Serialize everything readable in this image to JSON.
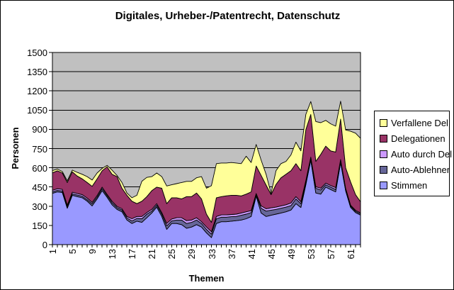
{
  "chart_data": {
    "type": "area",
    "stacked": true,
    "title": "Digitales, Urheber-/Patentrecht, Datenschutz",
    "xlabel": "Themen",
    "ylabel": "Personen",
    "ylim": [
      0,
      1500
    ],
    "yticks": [
      0,
      150,
      300,
      450,
      600,
      750,
      900,
      1050,
      1200,
      1350,
      1500
    ],
    "xtick_labels": [
      1,
      5,
      9,
      13,
      17,
      21,
      25,
      29,
      33,
      37,
      41,
      45,
      49,
      53,
      57,
      61
    ],
    "x": [
      1,
      2,
      3,
      4,
      5,
      6,
      7,
      8,
      9,
      10,
      11,
      12,
      13,
      14,
      15,
      16,
      17,
      18,
      19,
      20,
      21,
      22,
      23,
      24,
      25,
      26,
      27,
      28,
      29,
      30,
      31,
      32,
      33,
      34,
      35,
      36,
      37,
      38,
      39,
      40,
      41,
      42,
      43,
      44,
      45,
      46,
      47,
      48,
      49,
      50,
      51,
      52,
      53,
      54,
      55,
      56,
      57,
      58,
      59,
      60,
      61,
      62,
      63
    ],
    "grid": true,
    "plot_bg": "#C0C0C0",
    "legend_position": "right",
    "series": [
      {
        "name": "Stimmen",
        "color": "#9999FF",
        "values": [
          400,
          412,
          407,
          284,
          385,
          375,
          366,
          339,
          302,
          357,
          421,
          370,
          311,
          275,
          256,
          192,
          165,
          183,
          174,
          210,
          247,
          293,
          220,
          119,
          165,
          165,
          156,
          128,
          137,
          156,
          137,
          92,
          55,
          165,
          179,
          179,
          183,
          187,
          192,
          202,
          220,
          379,
          247,
          220,
          229,
          238,
          247,
          256,
          270,
          320,
          290,
          467,
          659,
          403,
          394,
          449,
          430,
          412,
          640,
          420,
          290,
          250,
          230
        ]
      },
      {
        "name": "Auto-Ablehner",
        "color": "#666699",
        "values": [
          12,
          12,
          12,
          12,
          12,
          12,
          12,
          12,
          16,
          14,
          16,
          12,
          16,
          14,
          14,
          16,
          20,
          22,
          28,
          28,
          15,
          15,
          18,
          28,
          20,
          27,
          36,
          37,
          37,
          36,
          28,
          27,
          27,
          37,
          35,
          35,
          35,
          33,
          37,
          36,
          30,
          11,
          37,
          42,
          40,
          37,
          37,
          37,
          35,
          37,
          30,
          18,
          13,
          37,
          33,
          18,
          19,
          18,
          15,
          12,
          10,
          10,
          10
        ]
      },
      {
        "name": "Auto durch Del",
        "color": "#CC99FF",
        "values": [
          12,
          12,
          12,
          12,
          12,
          12,
          12,
          12,
          12,
          12,
          12,
          10,
          12,
          10,
          10,
          12,
          17,
          15,
          18,
          12,
          13,
          12,
          12,
          18,
          15,
          18,
          18,
          22,
          18,
          18,
          14,
          18,
          19,
          18,
          18,
          18,
          17,
          18,
          18,
          18,
          15,
          9,
          18,
          18,
          18,
          18,
          18,
          18,
          20,
          18,
          15,
          15,
          11,
          12,
          13,
          13,
          12,
          15,
          10,
          8,
          8,
          8,
          8
        ]
      },
      {
        "name": "Delegationen",
        "color": "#993366",
        "values": [
          136,
          141,
          128,
          177,
          159,
          136,
          123,
          122,
          125,
          130,
          128,
          216,
          210,
          232,
          160,
          165,
          137,
          100,
          119,
          125,
          146,
          129,
          190,
          155,
          166,
          156,
          147,
          188,
          183,
          193,
          178,
          101,
          73,
          146,
          143,
          149,
          150,
          147,
          133,
          138,
          147,
          215,
          238,
          185,
          103,
          177,
          220,
          238,
          252,
          257,
          242,
          397,
          333,
          198,
          265,
          289,
          271,
          278,
          315,
          160,
          182,
          122,
          87
        ]
      },
      {
        "name": "Verfallene Del",
        "color": "#FFFF99",
        "values": [
          18,
          13,
          11,
          13,
          14,
          29,
          36,
          46,
          49,
          46,
          18,
          11,
          33,
          9,
          45,
          18,
          27,
          65,
          156,
          150,
          110,
          110,
          91,
          138,
          101,
          110,
          128,
          119,
          119,
          119,
          174,
          202,
          286,
          266,
          262,
          256,
          256,
          252,
          252,
          296,
          229,
          168,
          119,
          84,
          10,
          107,
          110,
          101,
          123,
          168,
          155,
          119,
          101,
          311,
          247,
          201,
          211,
          202,
          140,
          295,
          395,
          480,
          495
        ]
      }
    ]
  }
}
